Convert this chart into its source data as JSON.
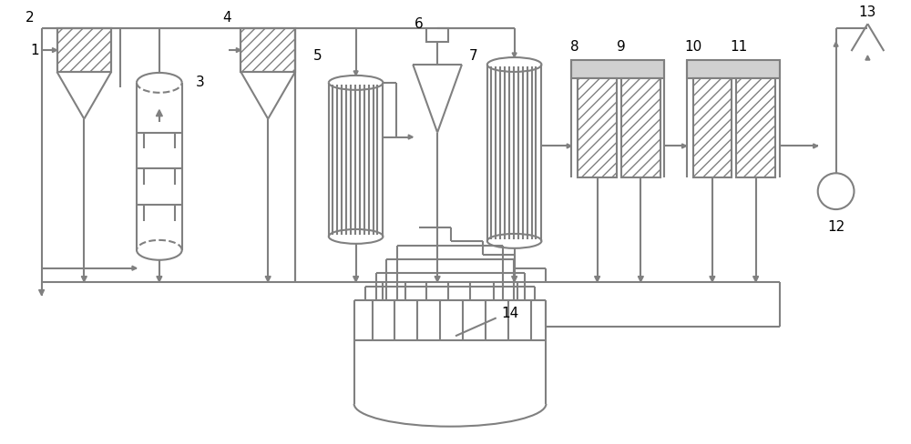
{
  "bg_color": "#ffffff",
  "lc": "#808080",
  "lw": 1.5,
  "fig_w": 10.0,
  "fig_h": 4.88,
  "dpi": 100
}
